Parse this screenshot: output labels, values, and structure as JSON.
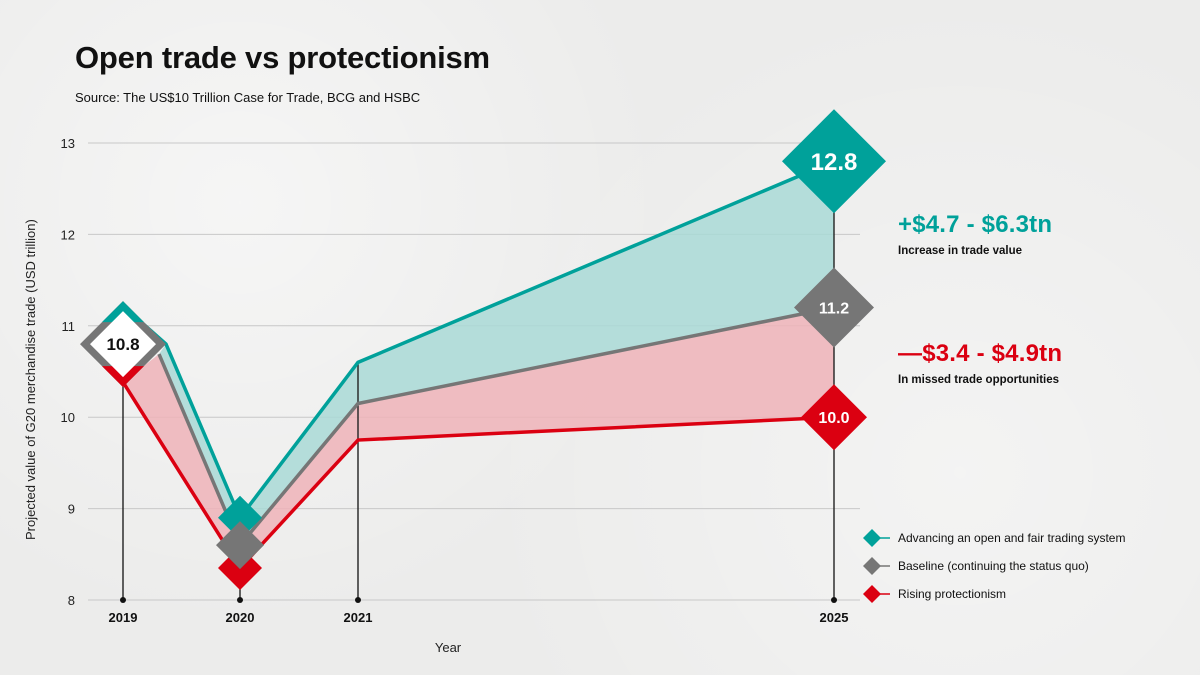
{
  "header": {
    "title": "Open trade vs protectionism",
    "source": "Source: The US$10 Trillion Case for Trade, BCG and HSBC"
  },
  "colors": {
    "open": "#00a19a",
    "baseline": "#767676",
    "protection": "#db0011",
    "open_fill": "#a9d9d6",
    "protection_fill": "#efb3b8"
  },
  "chart_data": {
    "type": "area",
    "title": "Open trade vs protectionism",
    "xlabel": "Year",
    "ylabel": "Projected value of G20 merchandise trade (USD trillion)",
    "ylim": [
      8,
      13
    ],
    "yticks": [
      "13",
      "12",
      "11",
      "10",
      "9",
      "8"
    ],
    "ytick_values": [
      13,
      12,
      11,
      10,
      9,
      8
    ],
    "categories": [
      "2019",
      "2020",
      "2021",
      "2025"
    ],
    "x": [
      2019,
      2020,
      2021,
      2025
    ],
    "grid": true,
    "series": [
      {
        "name": "Advancing an open and fair trading system",
        "key": "open",
        "values": [
          10.8,
          8.9,
          10.6,
          12.8
        ]
      },
      {
        "name": "Baseline (continuing the status quo)",
        "key": "baseline",
        "values": [
          10.8,
          8.6,
          10.15,
          11.2
        ]
      },
      {
        "name": "Rising protectionism",
        "key": "protection",
        "values": [
          10.8,
          8.35,
          9.75,
          10.0
        ]
      }
    ],
    "data_labels": {
      "start": "10.8",
      "open_2025": "12.8",
      "baseline_2025": "11.2",
      "protection_2025": "10.0"
    },
    "legend_position": "bottom-right"
  },
  "callouts": [
    {
      "value": "+$4.7 - $6.3tn",
      "caption": "Increase in trade value"
    },
    {
      "value": "—$3.4 - $4.9tn",
      "caption": "In missed trade opportunities"
    }
  ]
}
